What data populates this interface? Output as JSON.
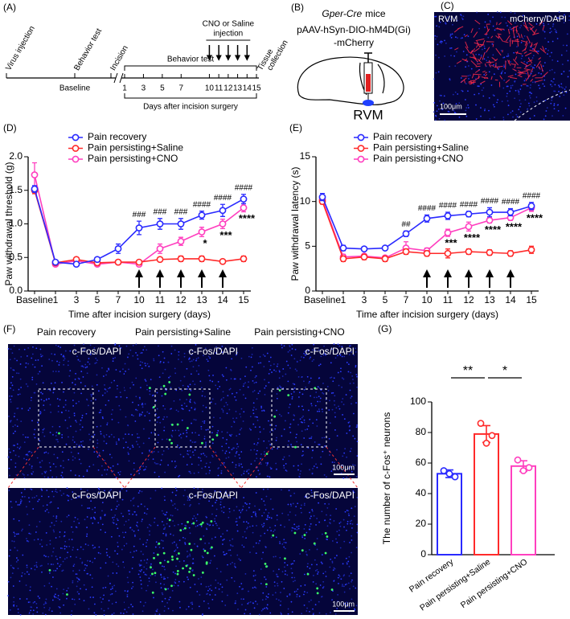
{
  "panel_labels": {
    "a": "(A)",
    "b": "(B)",
    "c": "(C)",
    "d": "(D)",
    "e": "(E)",
    "f": "(F)",
    "g": "(G)"
  },
  "panel_a": {
    "events": [
      "Virus injection",
      "Behavior test",
      "Incision"
    ],
    "baseline": "Baseline",
    "behavior_test": "Behavior test",
    "injection": [
      "CNO or Saline",
      "injection"
    ],
    "tissue": [
      "Tissue",
      "collection"
    ],
    "days": [
      1,
      3,
      5,
      7,
      10,
      11,
      12,
      13,
      14,
      15
    ],
    "days_label": "Days after incision surgery"
  },
  "panel_b": {
    "genotype": "Gper-Cre",
    "genotype_suffix": "mice",
    "vector": [
      "pAAV-hSyn-DIO-hM4D(Gi)",
      "-mCherry"
    ],
    "region": "RVM"
  },
  "panel_c": {
    "region": "RVM",
    "stain": "mCherry/DAPI",
    "scale": "100μm"
  },
  "panel_f": {
    "columns": [
      "Pain recovery",
      "Pain persisting+Saline",
      "Pain persisting+CNO"
    ],
    "stain": "c-Fos/DAPI",
    "scale": "100μm"
  },
  "chart_data": [
    {
      "type": "line",
      "x_label": "Time after incision surgery (days)",
      "y_label": "Paw withdrawal threshold (g)",
      "categories": [
        "Baseline",
        "1",
        "3",
        "5",
        "7",
        "10",
        "11",
        "12",
        "13",
        "14",
        "15"
      ],
      "ylim": [
        0,
        2
      ],
      "yticks": [
        {
          "value": 0,
          "label": "0.0"
        },
        0.5,
        {
          "value": 1,
          "label": "1.0"
        },
        1.5,
        {
          "value": 2,
          "label": "2.0"
        }
      ],
      "series": [
        {
          "name": "Pain recovery",
          "color": "#2a2aff",
          "values": [
            1.52,
            0.43,
            0.4,
            0.47,
            0.63,
            0.94,
            1.0,
            1.0,
            1.13,
            1.2,
            1.37
          ],
          "errors": [
            0.05,
            0.02,
            0.02,
            0.03,
            0.07,
            0.1,
            0.08,
            0.08,
            0.06,
            0.09,
            0.07
          ]
        },
        {
          "name": "Pain persisting+Saline",
          "color": "#ff2a2a",
          "values": [
            1.5,
            0.42,
            0.47,
            0.42,
            0.43,
            0.43,
            0.47,
            0.48,
            0.48,
            0.44,
            0.48
          ],
          "errors": [
            0.05,
            0.02,
            0.03,
            0.02,
            0.02,
            0.03,
            0.03,
            0.04,
            0.04,
            0.02,
            0.04
          ]
        },
        {
          "name": "Pain persisting+CNO",
          "color": "#ff3fbf",
          "values": [
            1.73,
            0.4,
            0.45,
            0.4,
            0.43,
            0.4,
            0.63,
            0.74,
            0.88,
            1.0,
            1.24
          ],
          "errors": [
            0.18,
            0.02,
            0.02,
            0.02,
            0.02,
            0.03,
            0.07,
            0.06,
            0.07,
            0.07,
            0.06
          ]
        }
      ],
      "hash_labels": [
        null,
        null,
        null,
        null,
        null,
        "###",
        "###",
        "###",
        "####",
        "####",
        "####"
      ],
      "star_labels": [
        null,
        null,
        null,
        null,
        null,
        null,
        null,
        null,
        "*",
        "***",
        "****"
      ]
    },
    {
      "type": "line",
      "x_label": "Time after incision surgery (days)",
      "y_label": "Paw withdrawal latency (s)",
      "categories": [
        "Baseline",
        "1",
        "3",
        "5",
        "7",
        "10",
        "11",
        "12",
        "13",
        "14",
        "15"
      ],
      "ylim": [
        0,
        15
      ],
      "yticks": [
        0,
        5,
        10,
        15
      ],
      "series": [
        {
          "name": "Pain recovery",
          "color": "#2a2aff",
          "values": [
            10.5,
            4.8,
            4.7,
            4.8,
            6.4,
            8.1,
            8.4,
            8.6,
            8.8,
            8.8,
            9.5
          ],
          "errors": [
            0.4,
            0.3,
            0.2,
            0.2,
            0.3,
            0.4,
            0.4,
            0.3,
            0.5,
            0.4,
            0.4
          ]
        },
        {
          "name": "Pain persisting+Saline",
          "color": "#ff2a2a",
          "values": [
            10.0,
            3.6,
            3.8,
            3.6,
            4.4,
            4.2,
            4.2,
            4.4,
            4.3,
            4.2,
            4.6
          ],
          "errors": [
            0.3,
            0.3,
            0.3,
            0.3,
            0.3,
            0.3,
            0.5,
            0.3,
            0.3,
            0.3,
            0.4
          ]
        },
        {
          "name": "Pain persisting+CNO",
          "color": "#ff3fbf",
          "values": [
            10.2,
            3.8,
            3.9,
            3.7,
            4.8,
            4.5,
            6.5,
            7.2,
            7.9,
            8.2,
            9.3
          ],
          "errors": [
            0.3,
            0.3,
            0.2,
            0.2,
            0.7,
            0.3,
            0.4,
            0.5,
            0.3,
            0.3,
            0.4
          ]
        }
      ],
      "hash_labels": [
        null,
        null,
        null,
        null,
        "##",
        "####",
        "####",
        "####",
        "####",
        "####",
        "####"
      ],
      "star_labels": [
        null,
        null,
        null,
        null,
        null,
        null,
        "***",
        "****",
        "****",
        "****",
        "****"
      ]
    },
    {
      "type": "bar",
      "y_label": "The number of c-Fos⁺ neurons",
      "categories": [
        "Pain recovery",
        "Pain persisting+Saline",
        "Pain persisting+CNO"
      ],
      "colors": [
        "#2a2aff",
        "#ff2a2a",
        "#ff3fbf"
      ],
      "values": [
        53,
        79,
        58
      ],
      "errors": [
        2.5,
        5.5,
        3.5
      ],
      "points": [
        [
          55,
          53,
          51
        ],
        [
          86,
          73,
          78
        ],
        [
          62,
          55,
          57
        ]
      ],
      "ylim": [
        0,
        100
      ],
      "yticks": [
        0,
        20,
        40,
        60,
        80,
        100
      ],
      "significance": [
        "**",
        "*"
      ]
    }
  ]
}
